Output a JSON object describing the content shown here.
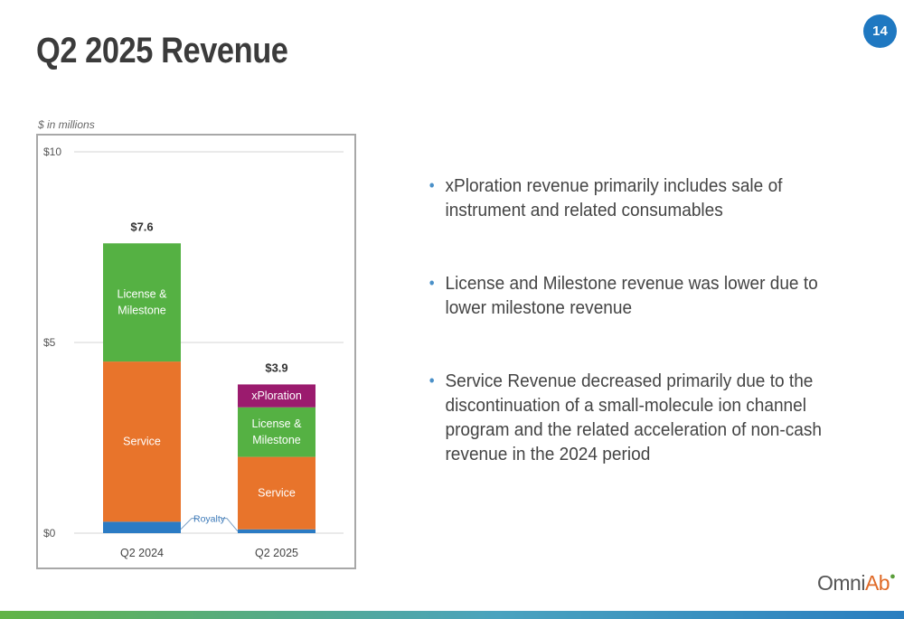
{
  "slide": {
    "title": "Q2 2025 Revenue",
    "page_number": "14",
    "units_note": "$ in millions",
    "logo_text": "Omni",
    "logo_accent": "Ab",
    "accent_color": "#1f78c1"
  },
  "bullets": [
    "xPloration revenue primarily includes sale of instrument and related consumables",
    "License and Milestone revenue was lower due to lower milestone revenue",
    "Service Revenue decreased primarily due to the discontinuation of a small-molecule ion channel program and the related acceleration of non-cash revenue in the 2024 period"
  ],
  "chart_data": {
    "type": "bar",
    "stacked": true,
    "categories": [
      "Q2 2024",
      "Q2 2025"
    ],
    "ylim": [
      0,
      10
    ],
    "yticks": [
      0,
      5,
      10
    ],
    "ytick_labels": [
      "$0",
      "$5",
      "$10"
    ],
    "grid": true,
    "totals": [
      7.6,
      3.9
    ],
    "total_labels": [
      "$7.6",
      "$3.9"
    ],
    "series": [
      {
        "name": "Royalty",
        "values": [
          0.3,
          0.1
        ],
        "color": "#2b7bc4",
        "label_lines": [
          [
            "Royalty"
          ],
          [
            "Royalty"
          ]
        ],
        "callout": "Royalty"
      },
      {
        "name": "Service",
        "values": [
          4.2,
          1.9
        ],
        "color": "#e8742b",
        "label_lines": [
          [
            "Service"
          ],
          [
            "Service"
          ]
        ]
      },
      {
        "name": "License & Milestone",
        "values": [
          3.1,
          1.3
        ],
        "color": "#55b143",
        "label_lines": [
          [
            "License &",
            "Milestone"
          ],
          [
            "License &",
            "Milestone"
          ]
        ]
      },
      {
        "name": "xPloration",
        "values": [
          0,
          0.6
        ],
        "color": "#9b1b6e",
        "label_lines": [
          [],
          [
            "xPloration"
          ]
        ]
      }
    ]
  }
}
